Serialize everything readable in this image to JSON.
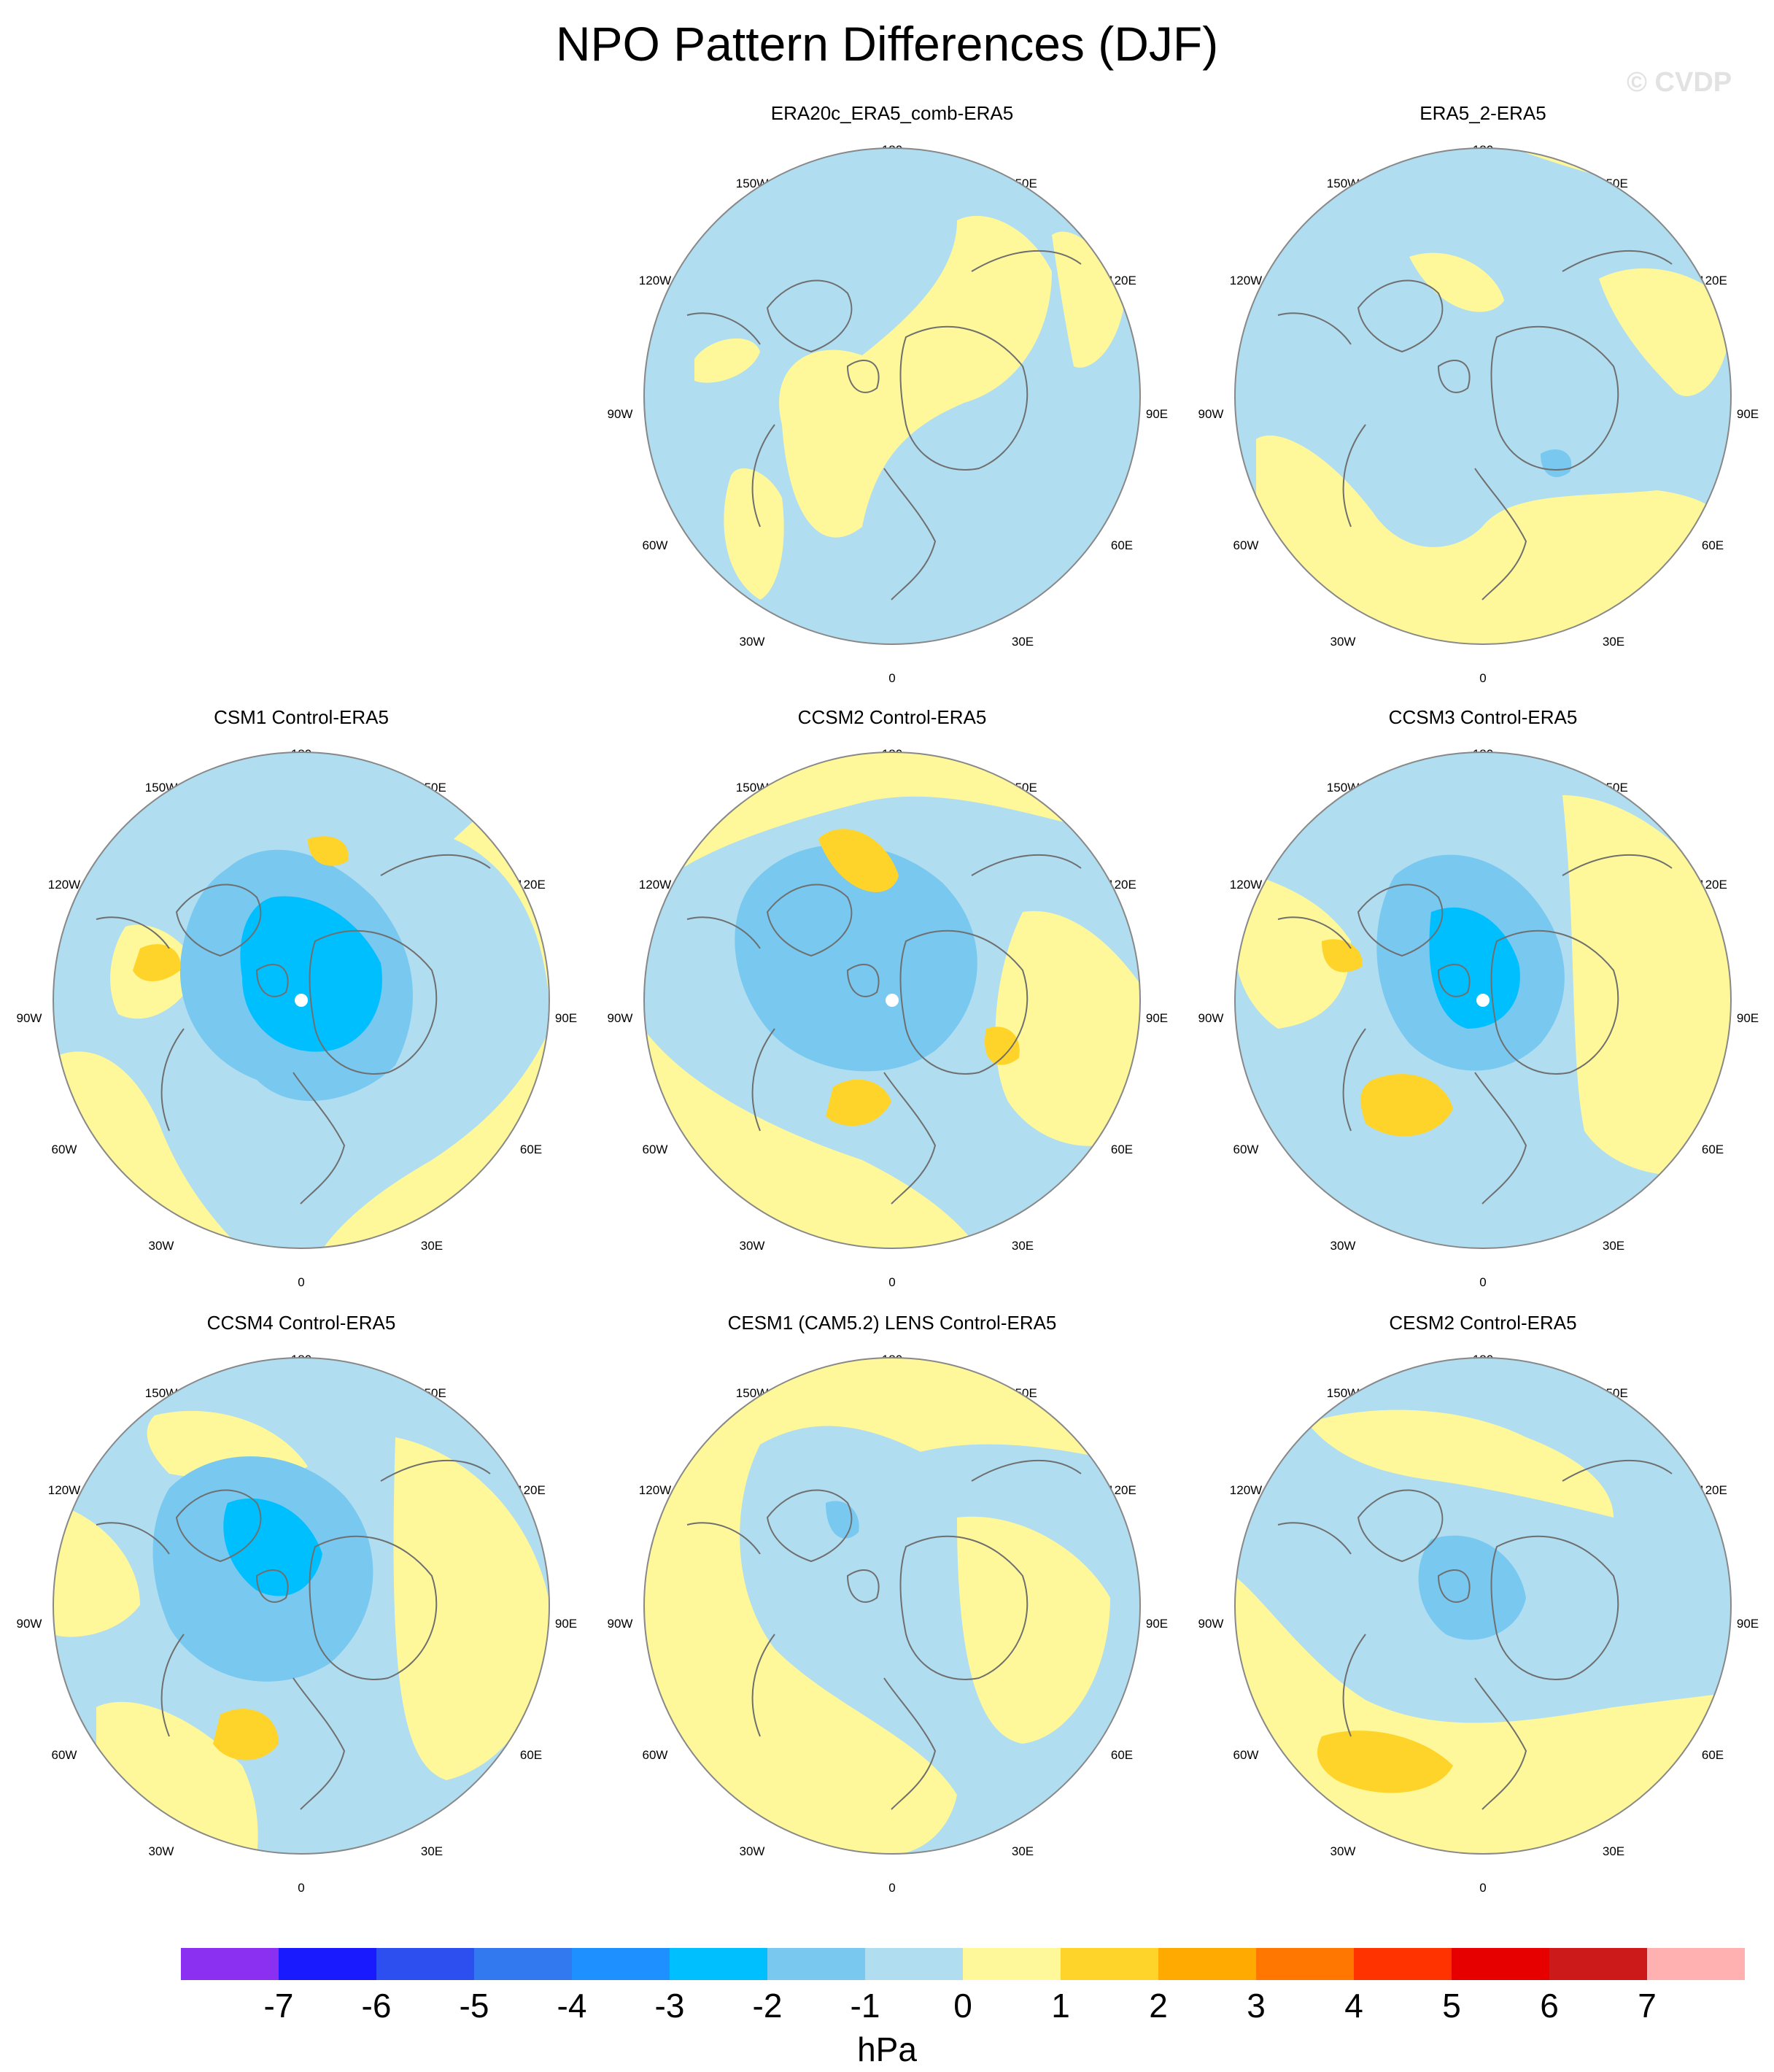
{
  "title": "NPO Pattern Differences (DJF)",
  "watermark": "© CVDP",
  "lon_labels": [
    "180",
    "150E",
    "120E",
    "90E",
    "60E",
    "30E",
    "0",
    "30W",
    "60W",
    "90W",
    "120W",
    "150W"
  ],
  "colors": {
    "land_outline": "#6f6f6f",
    "map_border": "#888888",
    "pole_marker": "#ffffff"
  },
  "panels": [
    {
      "title": "ERA20c_ERA5_comb-ERA5",
      "pole_marker": false,
      "anomalies": [
        {
          "sign": "pos",
          "level": 1,
          "desc": "Eurasia / Siberia"
        },
        {
          "sign": "pos",
          "level": 1,
          "desc": "western North Atlantic"
        },
        {
          "sign": "pos",
          "level": 1,
          "desc": "far east Asia / western Pacific"
        },
        {
          "sign": "pos",
          "level": 1,
          "desc": "northern North America"
        }
      ]
    },
    {
      "title": "ERA5_2-ERA5",
      "pole_marker": false,
      "anomalies": [
        {
          "sign": "pos",
          "level": 1,
          "desc": "North Atlantic / Europe"
        },
        {
          "sign": "pos",
          "level": 1,
          "desc": "North Pacific"
        },
        {
          "sign": "pos",
          "level": 1,
          "desc": "eastern Asia"
        },
        {
          "sign": "neg",
          "level": 2,
          "desc": "central Russia"
        }
      ]
    },
    {
      "title": "CSM1 Control-ERA5",
      "pole_marker": true,
      "anomalies": [
        {
          "sign": "neg",
          "level": 3,
          "desc": "Arctic"
        },
        {
          "sign": "pos",
          "level": 2,
          "desc": "western North America"
        },
        {
          "sign": "pos",
          "level": 2,
          "desc": "eastern Siberia"
        },
        {
          "sign": "pos",
          "level": 1,
          "desc": "Eurasia"
        },
        {
          "sign": "pos",
          "level": 1,
          "desc": "North Atlantic"
        }
      ]
    },
    {
      "title": "CCSM2 Control-ERA5",
      "pole_marker": true,
      "anomalies": [
        {
          "sign": "neg",
          "level": 2,
          "desc": "Arctic / Canada"
        },
        {
          "sign": "pos",
          "level": 2,
          "desc": "North Pacific"
        },
        {
          "sign": "pos",
          "level": 2,
          "desc": "North Atlantic"
        },
        {
          "sign": "pos",
          "level": 2,
          "desc": "central Russia"
        },
        {
          "sign": "neg",
          "level": 1,
          "desc": "Europe / Atlantic"
        }
      ]
    },
    {
      "title": "CCSM3 Control-ERA5",
      "pole_marker": true,
      "anomalies": [
        {
          "sign": "neg",
          "level": 3,
          "desc": "Arctic"
        },
        {
          "sign": "pos",
          "level": 2,
          "desc": "North Atlantic"
        },
        {
          "sign": "pos",
          "level": 2,
          "desc": "western North America"
        },
        {
          "sign": "pos",
          "level": 1,
          "desc": "Eurasia"
        },
        {
          "sign": "pos",
          "level": 1,
          "desc": "North Pacific"
        }
      ]
    },
    {
      "title": "CCSM4 Control-ERA5",
      "pole_marker": false,
      "anomalies": [
        {
          "sign": "neg",
          "level": 3,
          "desc": "Arctic"
        },
        {
          "sign": "pos",
          "level": 2,
          "desc": "North Atlantic"
        },
        {
          "sign": "pos",
          "level": 1,
          "desc": "Eurasia"
        },
        {
          "sign": "pos",
          "level": 1,
          "desc": "North Pacific"
        },
        {
          "sign": "pos",
          "level": 1,
          "desc": "North America"
        }
      ]
    },
    {
      "title": "CESM1 (CAM5.2) LENS Control-ERA5",
      "pole_marker": false,
      "anomalies": [
        {
          "sign": "pos",
          "level": 1,
          "desc": "Eurasia"
        },
        {
          "sign": "pos",
          "level": 1,
          "desc": "North America / Pacific"
        },
        {
          "sign": "neg",
          "level": 2,
          "desc": "Siberia"
        }
      ]
    },
    {
      "title": "CESM2 Control-ERA5",
      "pole_marker": false,
      "anomalies": [
        {
          "sign": "neg",
          "level": 2,
          "desc": "Arctic / Russia"
        },
        {
          "sign": "pos",
          "level": 2,
          "desc": "North Atlantic"
        },
        {
          "sign": "pos",
          "level": 1,
          "desc": "North Pacific / Eurasia"
        }
      ]
    }
  ],
  "colorbar": {
    "colors": [
      "#8b2ff0",
      "#1a1aff",
      "#2d4ff0",
      "#3278ee",
      "#1e90ff",
      "#00bfff",
      "#78c8f0",
      "#b0ddf0",
      "#fff89a",
      "#ffd42a",
      "#ffaa00",
      "#ff7700",
      "#ff3300",
      "#e60000",
      "#cc1a1a",
      "#ffb0b0"
    ],
    "ticks": [
      "-7",
      "-6",
      "-5",
      "-4",
      "-3",
      "-2",
      "-1",
      "0",
      "1",
      "2",
      "3",
      "4",
      "5",
      "6",
      "7"
    ],
    "units": "hPa"
  }
}
